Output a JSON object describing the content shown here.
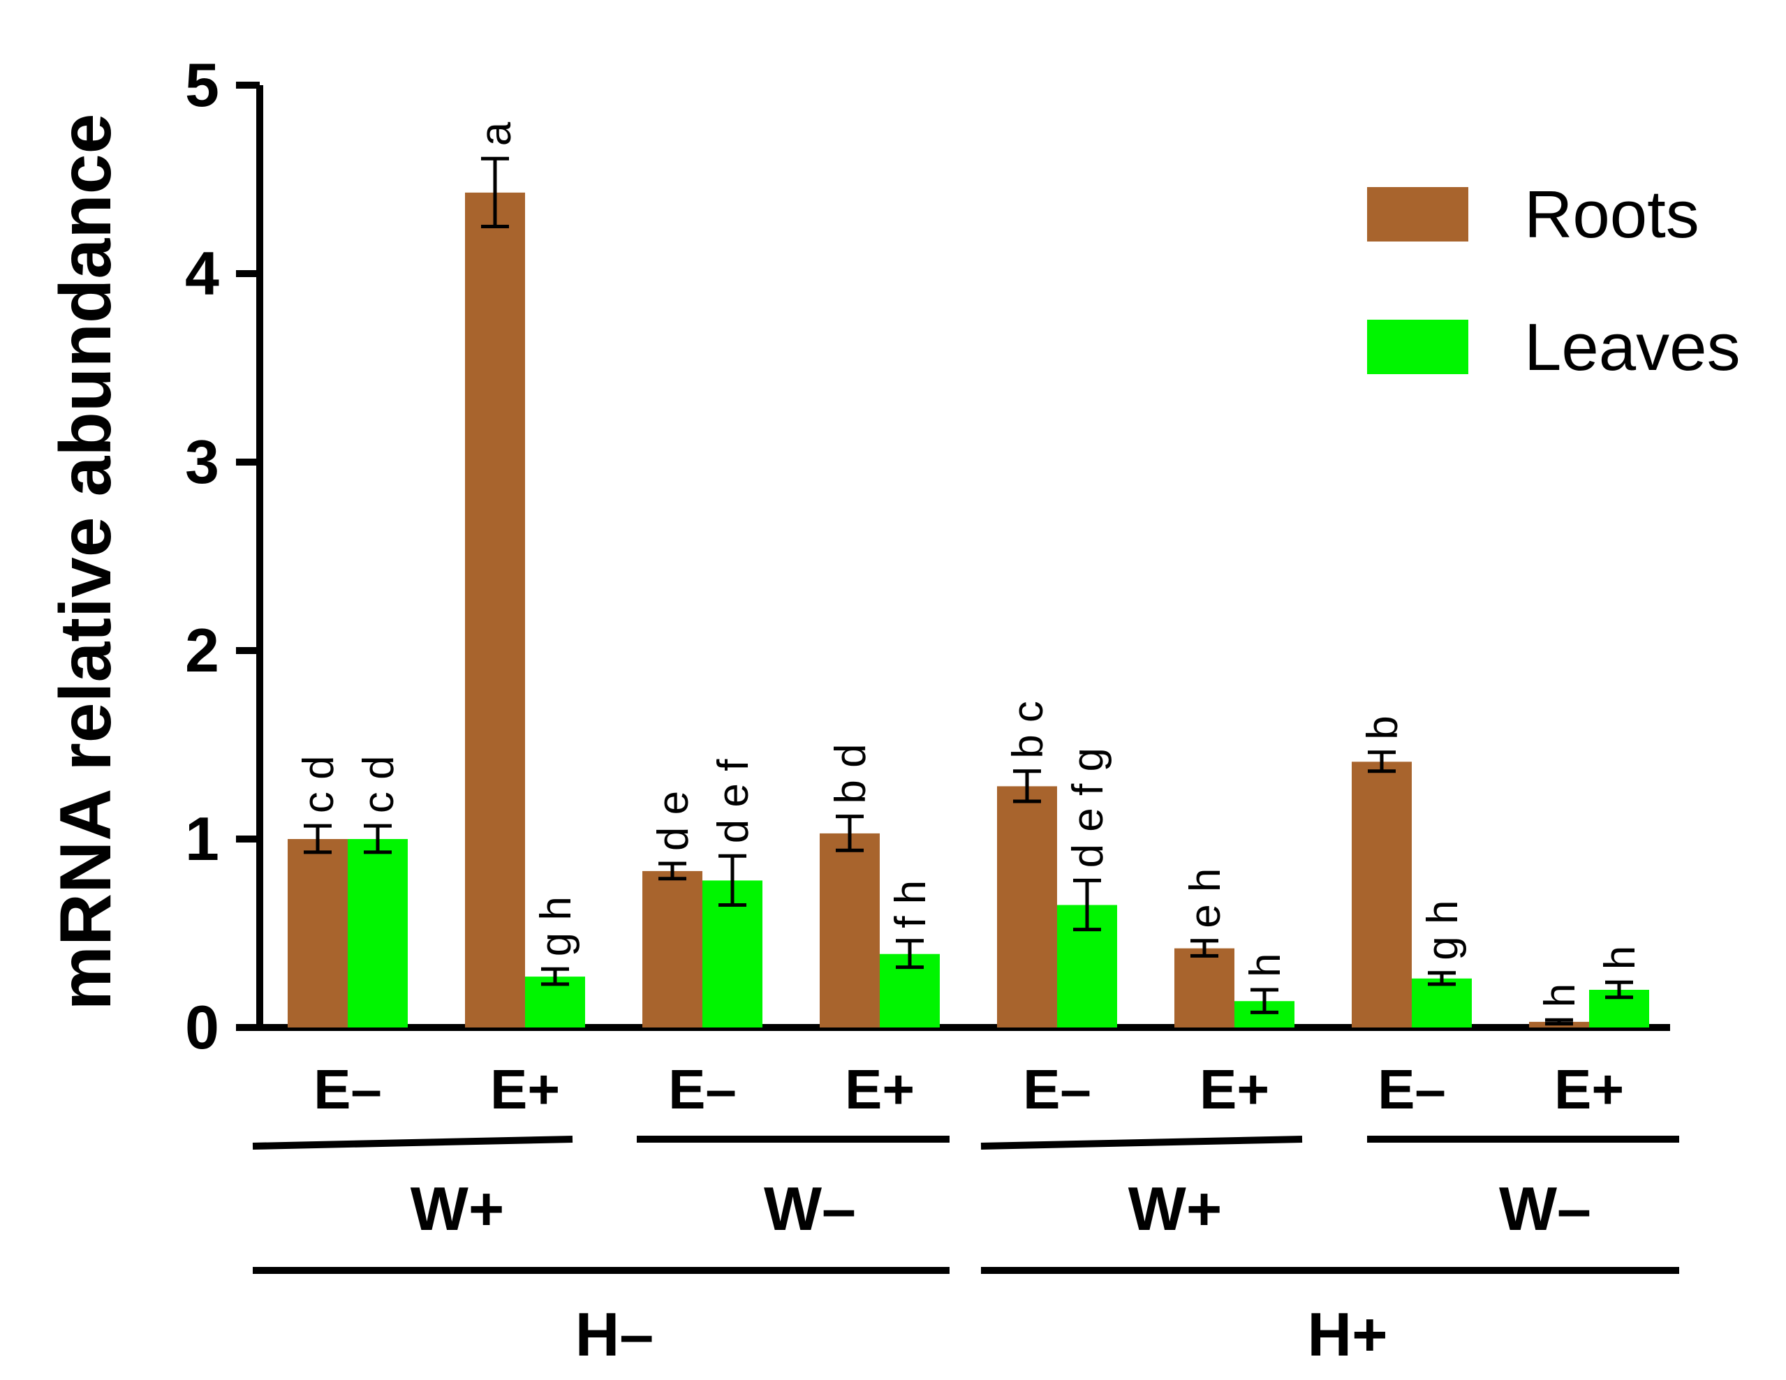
{
  "chart_data": {
    "type": "bar",
    "ylabel": "mRNA relative abundance",
    "ylim": [
      0,
      5
    ],
    "yticks": [
      "0",
      "1",
      "2",
      "3",
      "4",
      "5"
    ],
    "categories": [
      "E–",
      "E+",
      "E–",
      "E+",
      "E–",
      "E+",
      "E–",
      "E+"
    ],
    "groups_level1": [
      "W+",
      "W–",
      "W+",
      "W–"
    ],
    "groups_level2": [
      "H–",
      "H+"
    ],
    "legend_position": "top-right",
    "series": [
      {
        "name": "Roots",
        "color": "#A8642D",
        "values": [
          1.0,
          4.43,
          0.83,
          1.03,
          1.28,
          0.42,
          1.41,
          0.03
        ],
        "errors": [
          0.07,
          0.18,
          0.04,
          0.09,
          0.08,
          0.04,
          0.05,
          0.01
        ],
        "labels": [
          "c d",
          "a",
          "d e",
          "b d",
          "b c",
          "e h",
          "b",
          "h"
        ]
      },
      {
        "name": "Leaves",
        "color": "#00F500",
        "values": [
          1.0,
          0.27,
          0.78,
          0.39,
          0.65,
          0.14,
          0.26,
          0.2
        ],
        "errors": [
          0.07,
          0.04,
          0.13,
          0.07,
          0.13,
          0.06,
          0.03,
          0.04
        ],
        "labels": [
          "c d",
          "g h",
          "d e f",
          "f h",
          "d e f g",
          "h",
          "g h",
          "h"
        ]
      }
    ]
  }
}
